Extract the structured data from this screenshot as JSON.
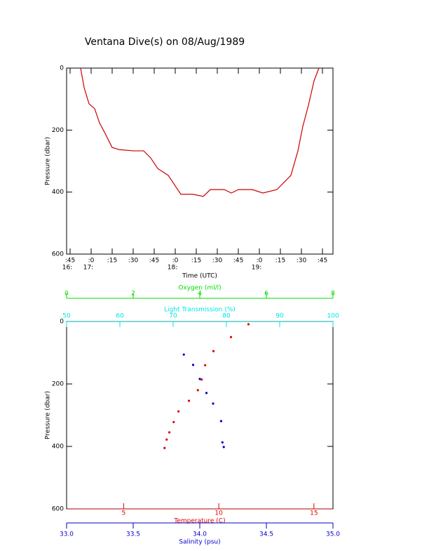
{
  "chart_data": [
    {
      "type": "line",
      "title": "Ventana Dive(s) on 08/Aug/1989",
      "x_label": "Time (UTC)",
      "y_label": "Pressure (dbar)",
      "x": [
        52.5,
        55,
        58.5,
        62.5,
        66,
        70,
        75,
        80,
        90,
        97.5,
        102.5,
        107.5,
        115,
        120,
        124,
        132.5,
        140,
        145,
        155,
        160,
        165,
        175,
        182.5,
        192.5,
        197.5,
        202.5,
        207.5,
        211,
        215,
        219,
        222.5
      ],
      "values": [
        0,
        63,
        115,
        131,
        177,
        211,
        256,
        263,
        267,
        267,
        290,
        324,
        346,
        380,
        407,
        407,
        414,
        392,
        392,
        403,
        392,
        392,
        403,
        392,
        369,
        346,
        267,
        188,
        120,
        41,
        0
      ],
      "color": "#cc0000",
      "xlim": [
        42.5,
        232.5
      ],
      "xticks": [
        {
          "value": 45,
          "label": ":45"
        },
        {
          "value": 60,
          "label": ":0"
        },
        {
          "value": 75,
          "label": ":15"
        },
        {
          "value": 90,
          "label": ":30"
        },
        {
          "value": 105,
          "label": ":45"
        },
        {
          "value": 120,
          "label": ":0"
        },
        {
          "value": 135,
          "label": ":15"
        },
        {
          "value": 150,
          "label": ":30"
        },
        {
          "value": 165,
          "label": ":45"
        },
        {
          "value": 180,
          "label": ":0"
        },
        {
          "value": 195,
          "label": ":15"
        },
        {
          "value": 210,
          "label": ":30"
        },
        {
          "value": 225,
          "label": ":45"
        }
      ],
      "xhour_labels": [
        {
          "value": 45,
          "label": "16:"
        },
        {
          "value": 60,
          "label": "17:"
        },
        {
          "value": 120,
          "label": "18:"
        },
        {
          "value": 180,
          "label": "19:"
        }
      ],
      "ylim": [
        0,
        600
      ],
      "yticks": [
        0,
        200,
        400,
        600
      ],
      "y_inverted": true
    },
    {
      "type": "scatter",
      "y_label": "Pressure (dbar)",
      "ylim": [
        0,
        600
      ],
      "yticks": [
        0,
        200,
        400,
        600
      ],
      "y_inverted": true,
      "axes": [
        {
          "label": "Oxygen (ml/l)",
          "color": "#00dd00",
          "lim": [
            0,
            8
          ],
          "ticks": [
            0,
            2,
            4,
            6,
            8
          ]
        },
        {
          "label": "Light Transmission (%)",
          "color": "#00e5e5",
          "lim": [
            50,
            100
          ],
          "ticks": [
            50,
            60,
            70,
            80,
            90,
            100
          ]
        },
        {
          "label": "Temperature (C)",
          "color": "#e00000",
          "lim": [
            2,
            16
          ],
          "ticks": [
            5,
            10,
            15
          ]
        },
        {
          "label": "Salinity (psu)",
          "color": "#0000cc",
          "lim": [
            33,
            35
          ],
          "ticks": [
            {
              "value": 33,
              "label": "33.0"
            },
            {
              "value": 33.5,
              "label": "33.5"
            },
            {
              "value": 34,
              "label": "34.0"
            },
            {
              "value": 34.5,
              "label": "34.5"
            },
            {
              "value": 35,
              "label": "35.0"
            }
          ]
        }
      ],
      "series": [
        {
          "color": "#e00000",
          "x_axis": 2,
          "x": [
            11.56,
            10.64,
            9.72,
            9.28,
            9.1,
            8.9,
            8.43,
            7.88,
            7.63,
            7.4,
            7.26,
            7.15
          ],
          "values": [
            9,
            50,
            95,
            140,
            186,
            220,
            254,
            288,
            322,
            355,
            378,
            405
          ]
        },
        {
          "color": "#0000cc",
          "x_axis": 3,
          "x": [
            33.88,
            33.95,
            34.0,
            34.05,
            34.1,
            34.16,
            34.17,
            34.18
          ],
          "values": [
            106,
            139,
            184,
            229,
            263,
            319,
            387,
            402
          ]
        }
      ]
    }
  ]
}
